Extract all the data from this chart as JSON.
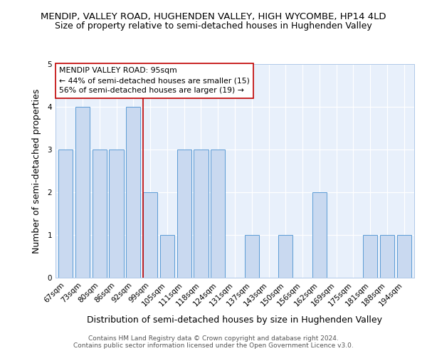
{
  "title": "MENDIP, VALLEY ROAD, HUGHENDEN VALLEY, HIGH WYCOMBE, HP14 4LD",
  "subtitle": "Size of property relative to semi-detached houses in Hughenden Valley",
  "xlabel": "Distribution of semi-detached houses by size in Hughenden Valley",
  "ylabel": "Number of semi-detached properties",
  "categories": [
    "67sqm",
    "73sqm",
    "80sqm",
    "86sqm",
    "92sqm",
    "99sqm",
    "105sqm",
    "111sqm",
    "118sqm",
    "124sqm",
    "131sqm",
    "137sqm",
    "143sqm",
    "150sqm",
    "156sqm",
    "162sqm",
    "169sqm",
    "175sqm",
    "181sqm",
    "188sqm",
    "194sqm"
  ],
  "values": [
    3,
    4,
    3,
    3,
    4,
    2,
    1,
    3,
    3,
    3,
    0,
    1,
    0,
    1,
    0,
    2,
    0,
    0,
    1,
    1,
    1
  ],
  "bar_color": "#c9d9f0",
  "bar_edge_color": "#5b9bd5",
  "highlight_line_index": 5,
  "highlight_line_color": "#c00000",
  "annotation_text": "MENDIP VALLEY ROAD: 95sqm\n← 44% of semi-detached houses are smaller (15)\n56% of semi-detached houses are larger (19) →",
  "annotation_box_color": "#ffffff",
  "annotation_box_edge_color": "#c00000",
  "ylim": [
    0,
    5
  ],
  "yticks": [
    0,
    1,
    2,
    3,
    4,
    5
  ],
  "footer1": "Contains HM Land Registry data © Crown copyright and database right 2024.",
  "footer2": "Contains public sector information licensed under the Open Government Licence v3.0.",
  "bg_color": "#ffffff",
  "plot_bg_color": "#e8f0fb",
  "title_fontsize": 9.5,
  "subtitle_fontsize": 9,
  "axis_label_fontsize": 9,
  "tick_fontsize": 7.5,
  "annotation_fontsize": 7.8,
  "footer_fontsize": 6.5
}
